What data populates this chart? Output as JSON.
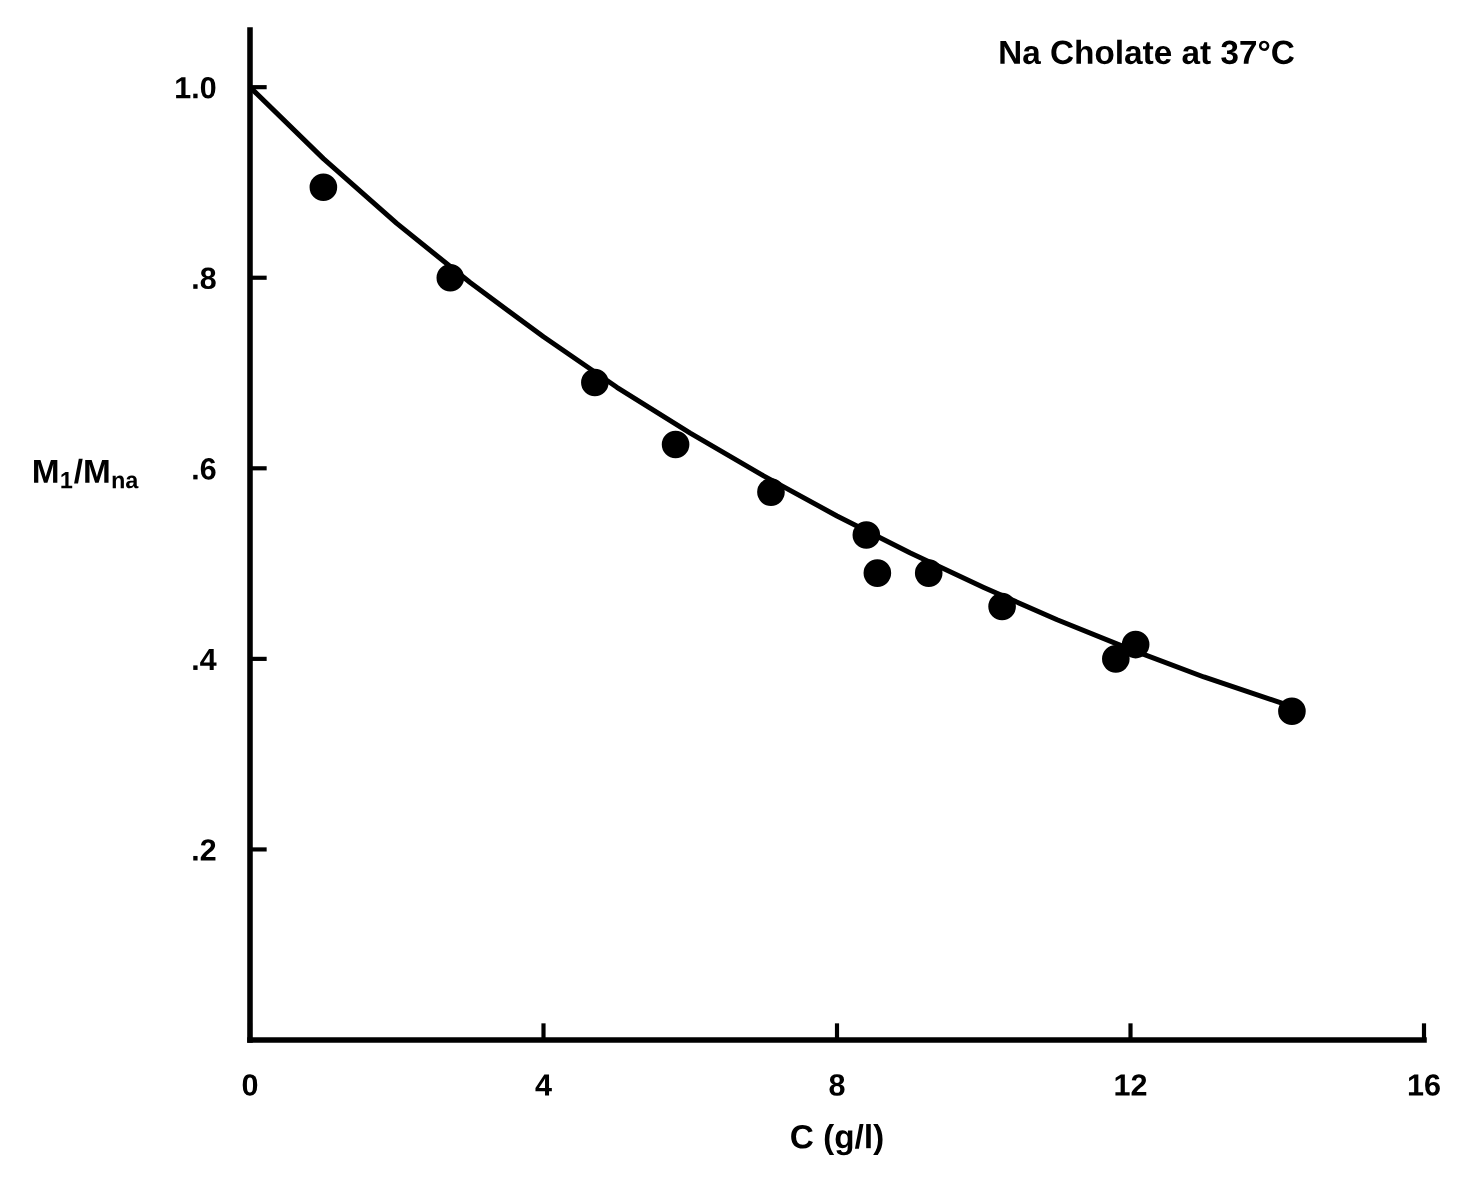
{
  "chart_data": {
    "type": "scatter",
    "title": "Na Cholate at 37°C",
    "xlabel": "C (g/l)",
    "ylabel": "M$_{1}$/M$_{na}$",
    "series": [
      {
        "color": "#000000",
        "marker": "circle",
        "x": [
          1.0,
          2.73,
          4.7,
          5.8,
          7.1,
          8.4,
          8.55,
          9.25,
          10.25,
          11.8,
          12.07,
          14.2
        ],
        "values": [
          0.895,
          0.8,
          0.69,
          0.625,
          0.575,
          0.53,
          0.49,
          0.49,
          0.455,
          0.4,
          0.415,
          0.345
        ]
      },
      {
        "type": "line",
        "color": "#000000",
        "marker": "none",
        "line_style": "solid",
        "x": [
          0,
          1,
          2,
          3,
          4,
          5,
          6,
          7,
          8,
          9,
          10,
          11,
          12,
          13,
          14.2
        ],
        "values": [
          1.0,
          0.925,
          0.857,
          0.795,
          0.738,
          0.685,
          0.637,
          0.592,
          0.55,
          0.511,
          0.475,
          0.441,
          0.41,
          0.381,
          0.35
        ]
      }
    ],
    "xlim": [
      0,
      16
    ],
    "ylim": [
      0,
      1.06
    ],
    "xticks": [
      0,
      4,
      8,
      12,
      16
    ],
    "yticks": [
      {
        "value": 0.2,
        "label": ".2"
      },
      {
        "value": 0.4,
        "label": ".4"
      },
      {
        "value": 0.6,
        "label": ".6"
      },
      {
        "value": 0.8,
        "label": ".8"
      },
      {
        "value": 1.0,
        "label": "1.0"
      }
    ],
    "grid": false,
    "legend": false
  }
}
